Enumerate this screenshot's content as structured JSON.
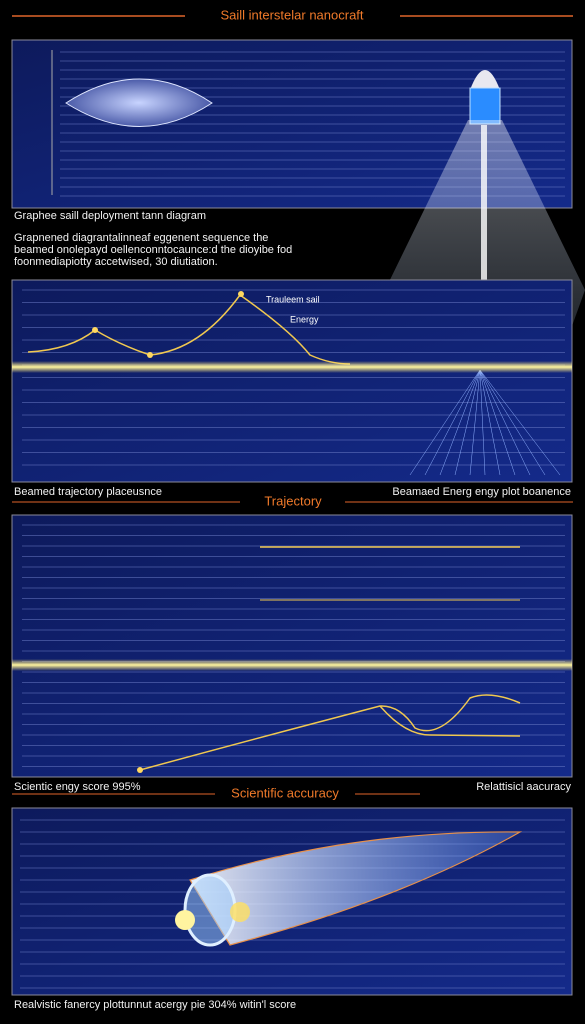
{
  "header": {
    "title": "Saill interstelar nanocraft"
  },
  "sail_panel": {
    "caption": "Graphee saill deployment tann diagram",
    "description": [
      "Grapnened diagrantalinneaf eggenent sequence the",
      "beamed onolepayd oellenconntocaunce:d the dioyibe fod",
      "foonmediapiotty accetwised, 30 diutiation."
    ]
  },
  "energy_panel": {
    "labels": [
      "Trauleem sail",
      "Energy"
    ]
  },
  "trajectory_row": {
    "left": "Beamed trajectory placeusnce",
    "center": "Trajectory",
    "right": "Beamaed Energ engy plot boanence"
  },
  "accuracy_row": {
    "left": "Scientic engy score 995%",
    "center": "Scientific accuracy",
    "right": "Relattisicl aacuracy"
  },
  "footer": {
    "caption": "Realvistic fanercy plottunnut acergy pie 304% witin'l score"
  }
}
